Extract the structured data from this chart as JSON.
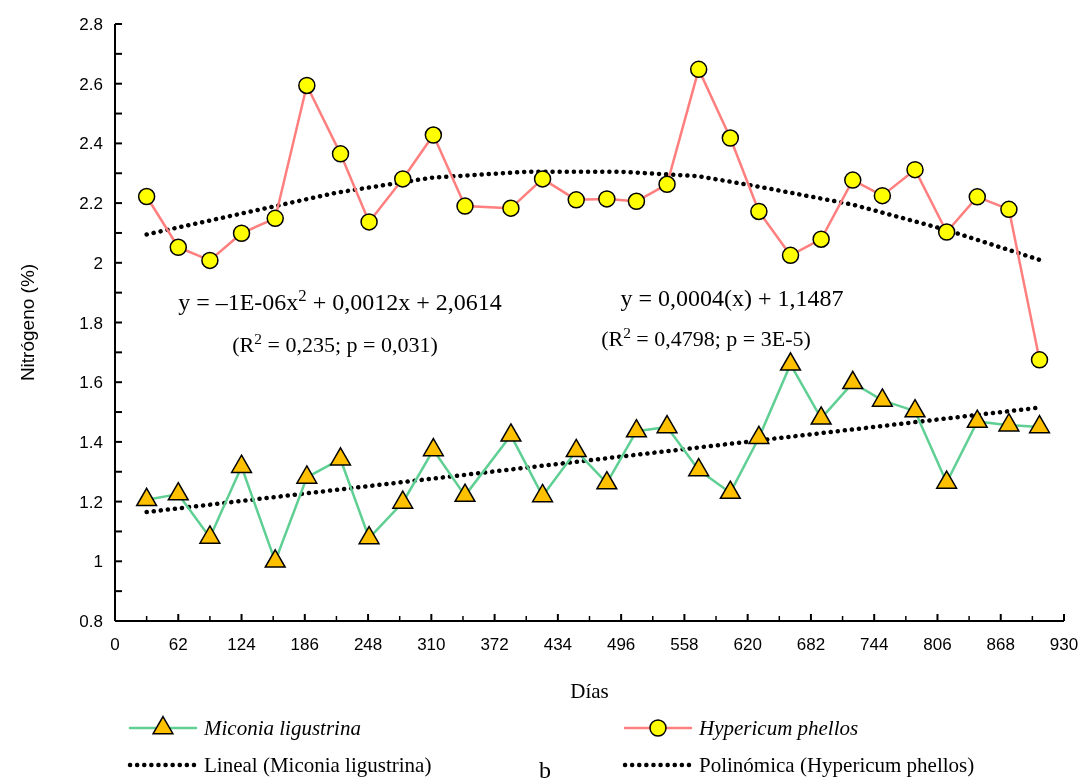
{
  "chart_data": {
    "type": "line",
    "xlabel": "Días",
    "ylabel": "Nitrógeno (%)",
    "xlim": [
      0,
      930
    ],
    "xticks": [
      0,
      62,
      124,
      186,
      248,
      310,
      372,
      434,
      496,
      558,
      620,
      682,
      744,
      806,
      868,
      930
    ],
    "ylim": [
      0.8,
      2.8
    ],
    "yticks": [
      0.8,
      1,
      1.2,
      1.4,
      1.6,
      1.8,
      2,
      2.2,
      2.4,
      2.6,
      2.8
    ],
    "grid": false,
    "legend": "bottom",
    "series": [
      {
        "name": "Miconia ligustrina",
        "color": "#5fcf94",
        "marker": "triangle",
        "x": [
          31,
          62,
          93,
          124,
          157,
          188,
          221,
          249,
          282,
          312,
          343,
          388,
          419,
          452,
          482,
          511,
          541,
          572,
          603,
          631,
          662,
          692,
          723,
          752,
          784,
          815,
          845,
          876,
          906
        ],
        "values": [
          1.206,
          1.225,
          1.08,
          1.317,
          1.0,
          1.281,
          1.342,
          1.078,
          1.197,
          1.373,
          1.22,
          1.422,
          1.219,
          1.37,
          1.262,
          1.436,
          1.45,
          1.306,
          1.23,
          1.414,
          1.66,
          1.479,
          1.598,
          1.539,
          1.503,
          1.264,
          1.468,
          1.456,
          1.45
        ]
      },
      {
        "name": "Hypericum phellos",
        "color": "#ff7f7f",
        "marker": "circle",
        "x": [
          31,
          62,
          93,
          124,
          157,
          188,
          221,
          249,
          282,
          312,
          343,
          388,
          419,
          452,
          482,
          511,
          541,
          572,
          603,
          631,
          662,
          692,
          723,
          752,
          784,
          815,
          845,
          876,
          906
        ],
        "values": [
          2.222,
          2.052,
          2.008,
          2.099,
          2.149,
          2.594,
          2.365,
          2.137,
          2.281,
          2.428,
          2.19,
          2.183,
          2.281,
          2.211,
          2.214,
          2.206,
          2.263,
          2.648,
          2.418,
          2.172,
          2.025,
          2.079,
          2.277,
          2.225,
          2.312,
          2.103,
          2.221,
          2.179,
          1.675
        ]
      },
      {
        "name": "Lineal (Miconia ligustrina)",
        "color": "#000000",
        "marker": "none",
        "line_style": "dotted",
        "x": [
          31,
          906
        ],
        "values": [
          1.165,
          1.515
        ]
      },
      {
        "name": "Polinómica (Hypericum phellos)",
        "color": "#000000",
        "marker": "none",
        "line_style": "dotted",
        "x": [
          31,
          124,
          217,
          310,
          403,
          496,
          572,
          631,
          723,
          815,
          906
        ],
        "values": [
          2.095,
          2.165,
          2.235,
          2.285,
          2.305,
          2.305,
          2.29,
          2.255,
          2.195,
          2.11,
          2.01
        ]
      }
    ],
    "annotations": [
      "y = –1E-06x$^{2}$ + 0,0012x + 2,0614",
      "(R$^{2}$ = 0,235; p = 0,031)",
      "y = 0,0004(x) + 1,1487",
      "(R$^{2}$ = 0,4798; p = 3E-5)",
      "b"
    ]
  }
}
